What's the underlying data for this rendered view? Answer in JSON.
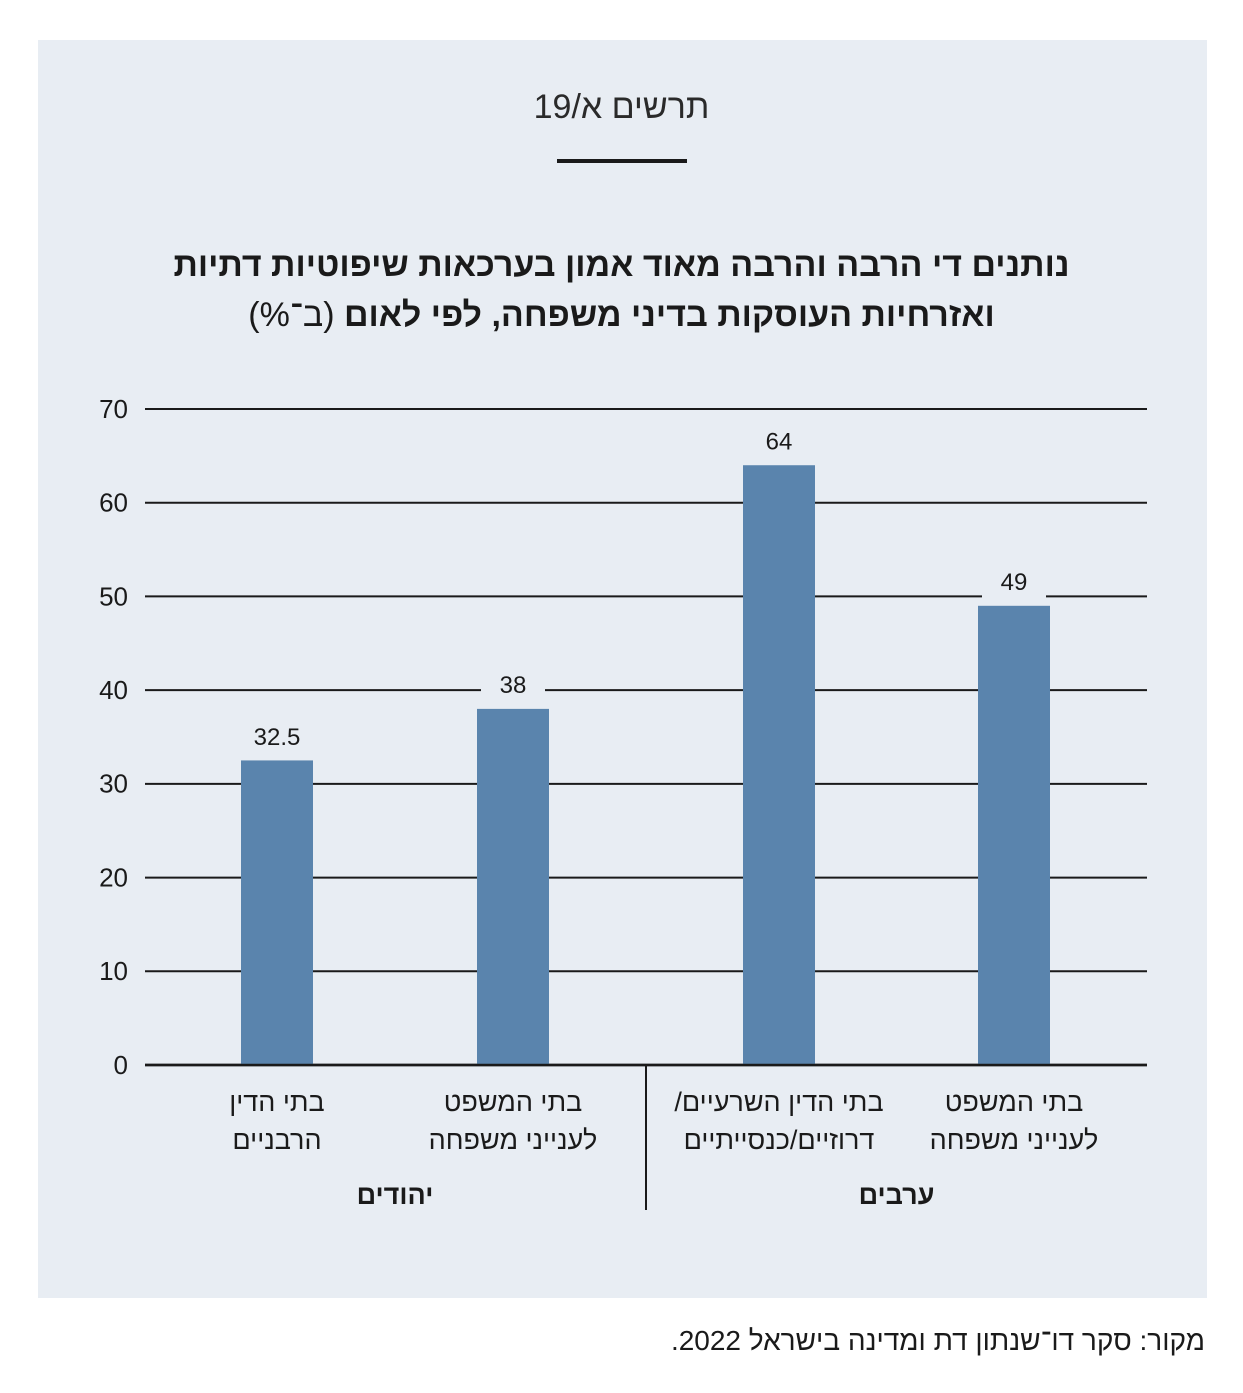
{
  "figure_label": "תרשים א/19",
  "chart_data": {
    "type": "bar",
    "title_line1": "נותנים די הרבה והרבה מאוד אמון בערכאות שיפוטיות דתיות",
    "title_line2": "ואזרחיות העוסקות בדיני משפחה, לפי לאום",
    "title_unit": "(ב־%)",
    "ylim": [
      0,
      70
    ],
    "yticks": [
      0,
      10,
      20,
      30,
      40,
      50,
      60,
      70
    ],
    "grid": true,
    "bar_color": "#5a84ad",
    "categories": [
      [
        "בתי הדין",
        "הרבניים"
      ],
      [
        "בתי המשפט",
        "לענייני משפחה"
      ],
      [
        "בתי הדין השרעיים/",
        "דרוזיים/כנסייתיים"
      ],
      [
        "בתי המשפט",
        "לענייני משפחה"
      ]
    ],
    "values": [
      32.5,
      38,
      64,
      49
    ],
    "value_labels": [
      "32.5",
      "38",
      "64",
      "49"
    ],
    "groups": [
      {
        "label": "יהודים",
        "members": [
          0,
          1
        ]
      },
      {
        "label": "ערבים",
        "members": [
          2,
          3
        ]
      }
    ]
  },
  "source": "מקור: סקר דו־שנתון דת ומדינה בישראל 2022."
}
